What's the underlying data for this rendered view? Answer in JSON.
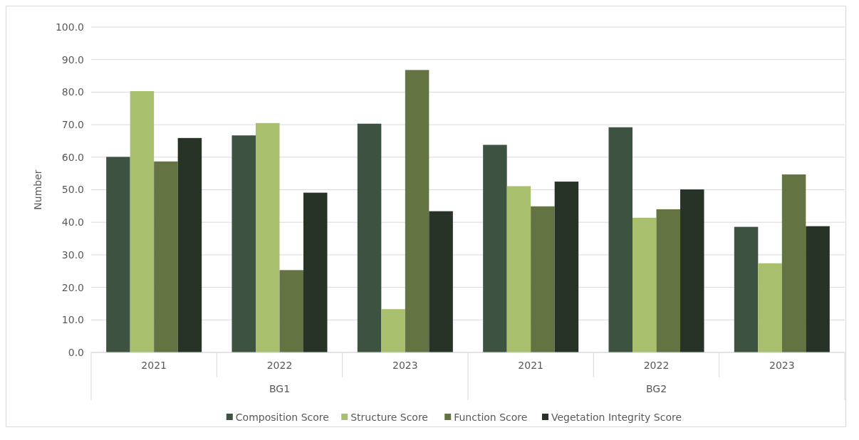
{
  "chart_data": {
    "type": "bar",
    "ylabel": "Number",
    "categories": [
      "2021",
      "2022",
      "2023",
      "2021",
      "2022",
      "2023"
    ],
    "annotations": [
      "BG1",
      "BG2"
    ],
    "series": [
      {
        "name": "Composition Score",
        "color": "#3d5240",
        "values": [
          60.1,
          66.7,
          70.3,
          63.8,
          69.2,
          38.6
        ]
      },
      {
        "name": "Structure Score",
        "color": "#a8bf6e",
        "values": [
          80.3,
          70.5,
          13.3,
          51.1,
          41.4,
          27.4
        ]
      },
      {
        "name": "Function Score",
        "color": "#637342",
        "values": [
          58.7,
          25.3,
          86.8,
          44.9,
          44.0,
          54.7
        ]
      },
      {
        "name": "Vegetation Integrity Score",
        "color": "#263326",
        "values": [
          65.9,
          49.1,
          43.4,
          52.5,
          50.1,
          38.8
        ]
      }
    ],
    "ylim": [
      0,
      100
    ],
    "yticks": [
      {
        "value": 0,
        "label": "0.0"
      },
      {
        "value": 10,
        "label": "10.0"
      },
      {
        "value": 20,
        "label": "20.0"
      },
      {
        "value": 30,
        "label": "30.0"
      },
      {
        "value": 40,
        "label": "40.0"
      },
      {
        "value": 50,
        "label": "50.0"
      },
      {
        "value": 60,
        "label": "60.0"
      },
      {
        "value": 70,
        "label": "70.0"
      },
      {
        "value": 80,
        "label": "80.0"
      },
      {
        "value": 90,
        "label": "90.0"
      },
      {
        "value": 100,
        "label": "100.0"
      }
    ],
    "grid": "y",
    "legend": "bottom"
  }
}
